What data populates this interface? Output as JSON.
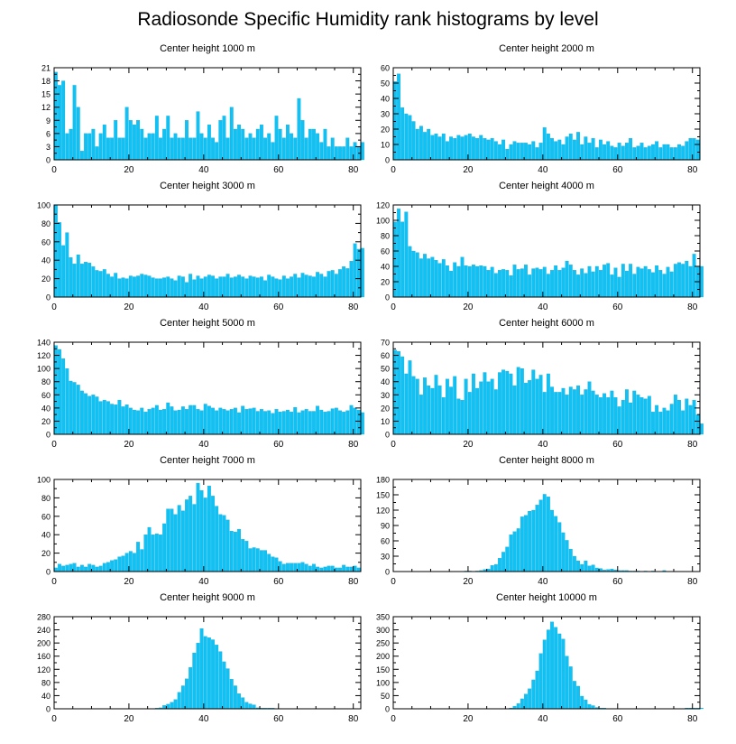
{
  "title": "Radiosonde Specific Humidity rank histograms by level",
  "colors": {
    "bar": "#0fc2f5",
    "bar_edge": "#0aa6d4",
    "axis": "#000000"
  },
  "chart_data": [
    {
      "type": "bar",
      "title": "Center height 1000 m",
      "xlabel": "",
      "ylabel": "",
      "xlim": [
        0,
        82
      ],
      "ylim": [
        0,
        21
      ],
      "xticks": [
        0,
        20,
        40,
        60,
        80
      ],
      "yticks": [
        0,
        3,
        6,
        9,
        12,
        15,
        18,
        21
      ],
      "values": [
        20,
        17,
        18,
        6,
        7,
        17,
        12,
        2,
        6,
        6,
        7,
        3,
        6,
        8,
        5,
        5,
        9,
        5,
        5,
        12,
        9,
        8,
        9,
        7,
        5,
        6,
        6,
        10,
        5,
        7,
        10,
        5,
        6,
        5,
        5,
        9,
        5,
        5,
        11,
        6,
        5,
        8,
        5,
        4,
        9,
        10,
        5,
        12,
        7,
        8,
        7,
        5,
        6,
        5,
        7,
        8,
        5,
        6,
        4,
        10,
        7,
        5,
        8,
        6,
        5,
        14,
        9,
        5,
        7,
        7,
        6,
        4,
        7,
        3,
        5,
        3,
        3,
        3,
        5,
        3,
        4,
        3,
        4
      ]
    },
    {
      "type": "bar",
      "title": "Center height 2000 m",
      "xlabel": "",
      "ylabel": "",
      "xlim": [
        0,
        82
      ],
      "ylim": [
        0,
        60
      ],
      "xticks": [
        0,
        20,
        40,
        60,
        80
      ],
      "yticks": [
        0,
        10,
        20,
        30,
        40,
        50,
        60
      ],
      "values": [
        51,
        56,
        34,
        30,
        29,
        25,
        20,
        22,
        18,
        20,
        16,
        17,
        15,
        17,
        12,
        15,
        14,
        16,
        15,
        16,
        17,
        15,
        14,
        16,
        14,
        13,
        14,
        12,
        10,
        13,
        7,
        10,
        12,
        11,
        11,
        11,
        10,
        12,
        8,
        11,
        21,
        17,
        14,
        12,
        13,
        10,
        15,
        17,
        13,
        18,
        10,
        15,
        11,
        14,
        8,
        13,
        10,
        12,
        9,
        8,
        11,
        9,
        11,
        14,
        8,
        9,
        11,
        8,
        9,
        10,
        12,
        8,
        10,
        10,
        8,
        8,
        10,
        9,
        12,
        14,
        14,
        13
      ]
    },
    {
      "type": "bar",
      "title": "Center height 3000 m",
      "xlabel": "",
      "ylabel": "",
      "xlim": [
        0,
        82
      ],
      "ylim": [
        0,
        100
      ],
      "xticks": [
        0,
        20,
        40,
        60,
        80
      ],
      "yticks": [
        0,
        20,
        40,
        60,
        80,
        100
      ],
      "values": [
        100,
        81,
        56,
        70,
        43,
        36,
        46,
        36,
        38,
        37,
        33,
        29,
        28,
        30,
        25,
        22,
        26,
        20,
        21,
        20,
        23,
        22,
        23,
        25,
        24,
        23,
        21,
        20,
        20,
        21,
        22,
        20,
        18,
        23,
        22,
        16,
        25,
        19,
        23,
        20,
        22,
        24,
        23,
        20,
        22,
        22,
        25,
        21,
        22,
        24,
        22,
        20,
        23,
        22,
        21,
        22,
        18,
        24,
        22,
        20,
        19,
        23,
        20,
        22,
        25,
        21,
        26,
        24,
        23,
        22,
        27,
        25,
        22,
        28,
        29,
        25,
        30,
        33,
        31,
        39,
        58,
        52,
        53
      ]
    },
    {
      "type": "bar",
      "title": "Center height 4000 m",
      "xlabel": "",
      "ylabel": "",
      "xlim": [
        0,
        82
      ],
      "ylim": [
        0,
        120
      ],
      "xticks": [
        0,
        20,
        40,
        60,
        80
      ],
      "yticks": [
        0,
        20,
        40,
        60,
        80,
        100,
        120
      ],
      "values": [
        98,
        115,
        98,
        111,
        66,
        60,
        58,
        50,
        56,
        50,
        52,
        48,
        44,
        49,
        41,
        34,
        45,
        40,
        52,
        41,
        40,
        42,
        40,
        41,
        40,
        35,
        39,
        31,
        35,
        36,
        35,
        28,
        42,
        36,
        37,
        42,
        29,
        37,
        38,
        36,
        39,
        30,
        35,
        41,
        35,
        38,
        47,
        42,
        35,
        29,
        37,
        31,
        40,
        33,
        40,
        35,
        42,
        44,
        29,
        38,
        26,
        43,
        34,
        43,
        30,
        39,
        37,
        40,
        36,
        32,
        41,
        35,
        30,
        39,
        33,
        43,
        45,
        43,
        47,
        40,
        56,
        39,
        40
      ]
    },
    {
      "type": "bar",
      "title": "Center height 5000 m",
      "xlabel": "",
      "ylabel": "",
      "xlim": [
        0,
        82
      ],
      "ylim": [
        0,
        140
      ],
      "xticks": [
        0,
        20,
        40,
        60,
        80
      ],
      "yticks": [
        0,
        20,
        40,
        60,
        80,
        100,
        120,
        140
      ],
      "values": [
        135,
        129,
        115,
        100,
        81,
        79,
        75,
        66,
        62,
        58,
        60,
        57,
        50,
        52,
        50,
        46,
        45,
        52,
        42,
        45,
        40,
        37,
        36,
        40,
        34,
        38,
        40,
        44,
        37,
        38,
        48,
        42,
        36,
        37,
        42,
        38,
        44,
        44,
        38,
        36,
        46,
        43,
        40,
        36,
        40,
        38,
        36,
        38,
        40,
        33,
        43,
        38,
        39,
        40,
        35,
        38,
        35,
        36,
        32,
        38,
        34,
        35,
        37,
        34,
        41,
        33,
        36,
        38,
        35,
        35,
        43,
        37,
        34,
        35,
        39,
        40,
        36,
        34,
        36,
        44,
        40,
        37,
        33
      ]
    },
    {
      "type": "bar",
      "title": "Center height 6000 m",
      "xlabel": "",
      "ylabel": "",
      "xlim": [
        0,
        82
      ],
      "ylim": [
        0,
        70
      ],
      "xticks": [
        0,
        20,
        40,
        60,
        80
      ],
      "yticks": [
        0,
        10,
        20,
        30,
        40,
        50,
        60,
        70
      ],
      "values": [
        64,
        63,
        59,
        46,
        56,
        44,
        42,
        30,
        43,
        37,
        35,
        45,
        37,
        28,
        42,
        36,
        44,
        27,
        26,
        42,
        32,
        46,
        35,
        40,
        47,
        40,
        42,
        34,
        47,
        49,
        48,
        46,
        37,
        51,
        50,
        39,
        41,
        49,
        42,
        45,
        32,
        46,
        36,
        32,
        32,
        35,
        30,
        36,
        34,
        37,
        30,
        34,
        40,
        33,
        30,
        28,
        31,
        28,
        33,
        28,
        21,
        26,
        34,
        24,
        33,
        30,
        28,
        27,
        29,
        17,
        22,
        17,
        20,
        18,
        23,
        30,
        26,
        18,
        27,
        22,
        26,
        15,
        8
      ]
    },
    {
      "type": "bar",
      "title": "Center height 7000 m",
      "xlabel": "",
      "ylabel": "",
      "xlim": [
        0,
        82
      ],
      "ylim": [
        0,
        100
      ],
      "xticks": [
        0,
        20,
        40,
        60,
        80
      ],
      "yticks": [
        0,
        20,
        40,
        60,
        80,
        100
      ],
      "values": [
        4,
        8,
        6,
        7,
        8,
        9,
        5,
        7,
        5,
        8,
        7,
        5,
        6,
        9,
        10,
        12,
        13,
        16,
        17,
        20,
        22,
        20,
        32,
        24,
        40,
        48,
        40,
        41,
        40,
        52,
        68,
        68,
        62,
        72,
        66,
        78,
        82,
        73,
        96,
        88,
        80,
        93,
        82,
        71,
        62,
        61,
        56,
        44,
        43,
        46,
        35,
        33,
        25,
        26,
        25,
        23,
        23,
        19,
        16,
        15,
        11,
        8,
        9,
        9,
        9,
        9,
        10,
        8,
        6,
        8,
        5,
        4,
        5,
        6,
        6,
        4,
        4,
        7,
        5,
        5,
        6,
        4
      ]
    },
    {
      "type": "bar",
      "title": "Center height 8000 m",
      "xlabel": "",
      "ylabel": "",
      "xlim": [
        0,
        82
      ],
      "ylim": [
        0,
        180
      ],
      "xticks": [
        0,
        20,
        40,
        60,
        80
      ],
      "yticks": [
        0,
        30,
        60,
        90,
        120,
        150,
        180
      ],
      "values": [
        0,
        0,
        0,
        0,
        0,
        0,
        0,
        0,
        0,
        0,
        0,
        0,
        0,
        0,
        0,
        0,
        0,
        0,
        0,
        1,
        1,
        0,
        1,
        2,
        4,
        5,
        12,
        14,
        26,
        38,
        48,
        72,
        78,
        84,
        107,
        110,
        118,
        120,
        130,
        140,
        151,
        146,
        120,
        108,
        96,
        76,
        61,
        44,
        30,
        21,
        14,
        21,
        11,
        13,
        7,
        6,
        3,
        4,
        5,
        3,
        2,
        2,
        2,
        1,
        1,
        1,
        0,
        1,
        0,
        1,
        0,
        0,
        2,
        0,
        0,
        0,
        0,
        0,
        0,
        0,
        0,
        0
      ]
    },
    {
      "type": "bar",
      "title": "Center height 9000 m",
      "xlabel": "",
      "ylabel": "",
      "xlim": [
        0,
        82
      ],
      "ylim": [
        0,
        280
      ],
      "xticks": [
        0,
        20,
        40,
        60,
        80
      ],
      "yticks": [
        0,
        40,
        80,
        120,
        160,
        200,
        240,
        280
      ],
      "values": [
        0,
        0,
        0,
        0,
        0,
        0,
        0,
        0,
        0,
        0,
        0,
        0,
        0,
        0,
        0,
        0,
        0,
        0,
        0,
        0,
        0,
        0,
        0,
        0,
        0,
        0,
        0,
        2,
        3,
        10,
        14,
        20,
        28,
        50,
        70,
        91,
        126,
        170,
        200,
        244,
        220,
        216,
        210,
        194,
        174,
        143,
        122,
        90,
        70,
        46,
        34,
        20,
        15,
        12,
        3,
        2,
        2,
        2,
        2,
        0,
        1,
        0,
        0,
        0,
        0,
        0,
        0,
        0,
        0,
        0,
        0,
        0,
        0,
        0,
        0,
        0,
        0,
        0,
        0,
        0,
        0,
        0
      ]
    },
    {
      "type": "bar",
      "title": "Center height 10000 m",
      "xlabel": "",
      "ylabel": "",
      "xlim": [
        0,
        82
      ],
      "ylim": [
        0,
        350
      ],
      "xticks": [
        0,
        20,
        40,
        60,
        80
      ],
      "yticks": [
        0,
        50,
        100,
        150,
        200,
        250,
        300,
        350
      ],
      "values": [
        0,
        0,
        0,
        0,
        0,
        0,
        0,
        0,
        0,
        0,
        0,
        0,
        0,
        0,
        0,
        0,
        0,
        0,
        0,
        0,
        0,
        0,
        0,
        0,
        0,
        0,
        0,
        0,
        0,
        0,
        0,
        3,
        10,
        20,
        38,
        56,
        76,
        110,
        144,
        210,
        262,
        300,
        330,
        310,
        285,
        265,
        200,
        160,
        105,
        86,
        48,
        34,
        17,
        12,
        5,
        3,
        3,
        1,
        1,
        0,
        0,
        0,
        0,
        0,
        0,
        0,
        0,
        0,
        0,
        0,
        0,
        0,
        0,
        0,
        0,
        0,
        0,
        0,
        3,
        3,
        3,
        3,
        3
      ]
    }
  ]
}
